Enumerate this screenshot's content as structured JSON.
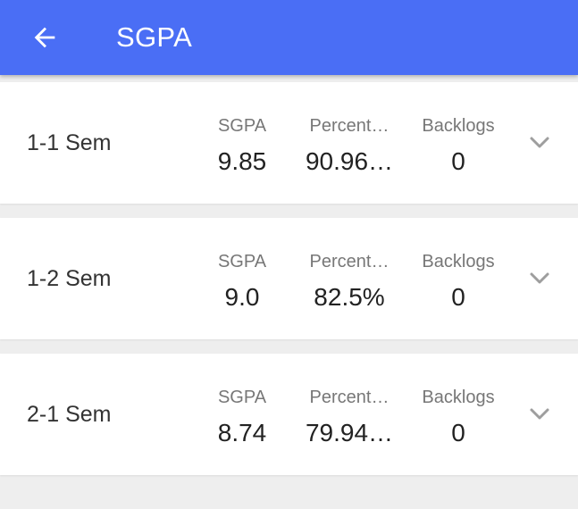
{
  "header": {
    "title": "SGPA",
    "background": "#4a6ef5",
    "back_icon": "arrow-left-icon"
  },
  "semesters": [
    {
      "label": "1-1 Sem",
      "sgpa_label": "SGPA",
      "sgpa": "9.85",
      "percent_label": "Percent…",
      "percent": "90.96…",
      "backlogs_label": "Backlogs",
      "backlogs": "0",
      "expand_icon": "chevron-down-icon"
    },
    {
      "label": "1-2 Sem",
      "sgpa_label": "SGPA",
      "sgpa": "9.0",
      "percent_label": "Percent…",
      "percent": "82.5%",
      "backlogs_label": "Backlogs",
      "backlogs": "0",
      "expand_icon": "chevron-down-icon"
    },
    {
      "label": "2-1 Sem",
      "sgpa_label": "SGPA",
      "sgpa": "8.74",
      "percent_label": "Percent…",
      "percent": "79.94…",
      "backlogs_label": "Backlogs",
      "backlogs": "0",
      "expand_icon": "chevron-down-icon"
    }
  ]
}
